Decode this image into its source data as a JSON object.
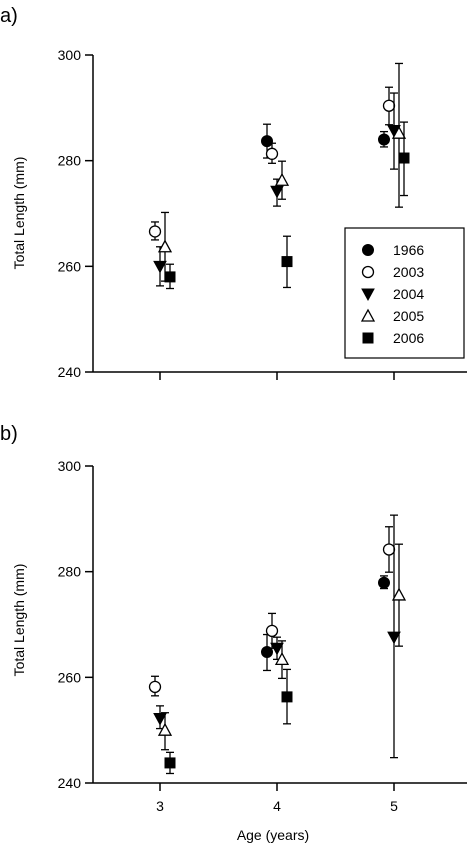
{
  "chart_data": [
    {
      "type": "scatter",
      "panel_label": "a)",
      "ylabel": "Total Length (mm)",
      "xlabel": "",
      "xlim": [
        2.5,
        5.5
      ],
      "ylim": [
        240,
        300
      ],
      "yticks": [
        "240",
        "260",
        "280",
        "300"
      ],
      "xticks": [],
      "legend_position": "right",
      "series": [
        {
          "name": "1966",
          "marker": "filled-circle",
          "points": [
            {
              "x": 4,
              "y": 283.7,
              "lo": 280.5,
              "hi": 286.9
            },
            {
              "x": 5,
              "y": 284.0,
              "lo": 282.6,
              "hi": 285.5
            }
          ]
        },
        {
          "name": "2003",
          "marker": "open-circle",
          "points": [
            {
              "x": 3,
              "y": 266.6,
              "lo": 265.0,
              "hi": 268.4
            },
            {
              "x": 4,
              "y": 281.3,
              "lo": 279.5,
              "hi": 283.3
            },
            {
              "x": 5,
              "y": 290.4,
              "lo": 286.8,
              "hi": 293.9
            }
          ]
        },
        {
          "name": "2004",
          "marker": "filled-triangle-down",
          "points": [
            {
              "x": 3,
              "y": 260.0,
              "lo": 256.3,
              "hi": 263.7
            },
            {
              "x": 4,
              "y": 274.2,
              "lo": 271.4,
              "hi": 276.5
            },
            {
              "x": 5,
              "y": 285.7,
              "lo": 278.4,
              "hi": 292.8
            }
          ]
        },
        {
          "name": "2005",
          "marker": "open-triangle-up",
          "points": [
            {
              "x": 3,
              "y": 263.7,
              "lo": 257.2,
              "hi": 270.2
            },
            {
              "x": 4,
              "y": 276.3,
              "lo": 272.7,
              "hi": 279.9
            },
            {
              "x": 5,
              "y": 285.2,
              "lo": 271.2,
              "hi": 298.4
            }
          ]
        },
        {
          "name": "2006",
          "marker": "filled-square",
          "points": [
            {
              "x": 3,
              "y": 258.0,
              "lo": 255.8,
              "hi": 260.4
            },
            {
              "x": 4,
              "y": 260.9,
              "lo": 256.0,
              "hi": 265.7
            },
            {
              "x": 5,
              "y": 280.5,
              "lo": 273.4,
              "hi": 287.3
            }
          ]
        }
      ]
    },
    {
      "type": "scatter",
      "panel_label": "b)",
      "ylabel": "Total Length (mm)",
      "xlabel": "Age (years)",
      "xlim": [
        2.5,
        5.5
      ],
      "ylim": [
        240,
        300
      ],
      "yticks": [
        "240",
        "260",
        "280",
        "300"
      ],
      "xticks": [
        "3",
        "4",
        "5"
      ],
      "series": [
        {
          "name": "1966",
          "marker": "filled-circle",
          "points": [
            {
              "x": 4,
              "y": 264.8,
              "lo": 261.3,
              "hi": 268.1
            },
            {
              "x": 5,
              "y": 277.9,
              "lo": 276.8,
              "hi": 279.2
            }
          ]
        },
        {
          "name": "2003",
          "marker": "open-circle",
          "points": [
            {
              "x": 3,
              "y": 258.2,
              "lo": 256.5,
              "hi": 260.2
            },
            {
              "x": 4,
              "y": 268.8,
              "lo": 265.5,
              "hi": 272.1
            },
            {
              "x": 5,
              "y": 284.2,
              "lo": 279.9,
              "hi": 288.5
            }
          ]
        },
        {
          "name": "2004",
          "marker": "filled-triangle-down",
          "points": [
            {
              "x": 3,
              "y": 252.2,
              "lo": 250.3,
              "hi": 254.6
            },
            {
              "x": 4,
              "y": 265.5,
              "lo": 263.4,
              "hi": 267.6
            },
            {
              "x": 5,
              "y": 267.6,
              "lo": 244.8,
              "hi": 290.7
            }
          ]
        },
        {
          "name": "2005",
          "marker": "open-triangle-up",
          "points": [
            {
              "x": 3,
              "y": 250.0,
              "lo": 246.3,
              "hi": 253.3
            },
            {
              "x": 4,
              "y": 263.4,
              "lo": 259.8,
              "hi": 266.9
            },
            {
              "x": 5,
              "y": 275.6,
              "lo": 265.9,
              "hi": 285.2
            }
          ]
        },
        {
          "name": "2006",
          "marker": "filled-square",
          "points": [
            {
              "x": 3,
              "y": 243.8,
              "lo": 241.8,
              "hi": 245.8
            },
            {
              "x": 4,
              "y": 256.3,
              "lo": 251.2,
              "hi": 261.5
            }
          ]
        }
      ]
    }
  ]
}
